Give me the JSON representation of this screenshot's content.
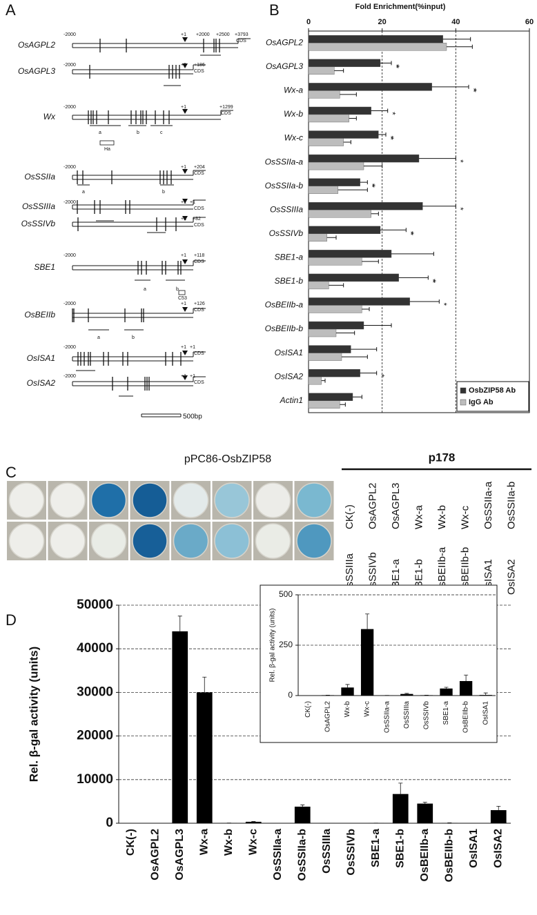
{
  "panel_labels": [
    "A",
    "B",
    "C",
    "D"
  ],
  "panel_a": {
    "genes": [
      {
        "name": "OsAGPL2",
        "labels": [
          "-2000",
          "+1",
          "+2000",
          "+2500",
          "+3793",
          "CDS"
        ]
      },
      {
        "name": "OsAGPL3",
        "labels": [
          "-2000",
          "+1",
          "+186",
          "CDS"
        ]
      },
      {
        "name": "Wx",
        "labels": [
          "-2000",
          "+1",
          "+1299",
          "CDS",
          "a",
          "b",
          "c",
          "Ha"
        ]
      },
      {
        "name": "OsSSIIa",
        "labels": [
          "-2000",
          "+1",
          "+204",
          "CDS",
          "a",
          "b"
        ]
      },
      {
        "name": "OsSSIIIa",
        "labels": [
          "-2000",
          "+1",
          "+1",
          "CDS"
        ]
      },
      {
        "name": "OsSSIVb",
        "labels": [
          "+1",
          "+82",
          "CDS"
        ]
      },
      {
        "name": "SBE1",
        "labels": [
          "-2000",
          "+1",
          "+118",
          "CDS",
          "a",
          "b",
          "C53"
        ]
      },
      {
        "name": "OsBEIIb",
        "labels": [
          "-2000",
          "+1",
          "+126",
          "CDS",
          "a",
          "b"
        ]
      },
      {
        "name": "OsISA1",
        "labels": [
          "-2000",
          "+1",
          "+1",
          "CDS"
        ]
      },
      {
        "name": "OsISA2",
        "labels": [
          "-2000",
          "+1",
          "+1",
          "CDS"
        ]
      }
    ],
    "scale_bar": "500bp"
  },
  "panel_c": {
    "title": "pPC86-OsbZIP58",
    "header": "p178",
    "rows": [
      [
        "CK(-)",
        "OsAGPL2",
        "OsAGPL3",
        "Wx-a",
        "Wx-b",
        "Wx-c",
        "OsSSIIa-a",
        "OsSSIIa-b"
      ],
      [
        "OsSSIIIa",
        "OsSSIVb",
        "SBE1-a",
        "SBE1-b",
        "OsBEIIb-a",
        "OsBEIIb-b",
        "OsISA1",
        "OsISA2"
      ]
    ]
  },
  "chart_data": [
    {
      "type": "barh",
      "title": "Fold Enrichment(%input)",
      "categories": [
        "OsAGPL2",
        "OsAGPL3",
        "Wx-a",
        "Wx-b",
        "Wx-c",
        "OsSSIIa-a",
        "OsSSIIa-b",
        "OsSSIIIa",
        "OsSSIVb",
        "SBE1-a",
        "SBE1-b",
        "OsBEIIb-a",
        "OsBEIIb-b",
        "OsISA1",
        "OsISA2",
        "Actin1"
      ],
      "series": [
        {
          "name": "OsbZIP58 Ab",
          "color": "#333333",
          "values": [
            36.5,
            19.5,
            33.5,
            17,
            19,
            30,
            14,
            31,
            19.5,
            22.5,
            24.5,
            27.5,
            15,
            11.5,
            14,
            12
          ],
          "errors": [
            7.5,
            3,
            10,
            4.5,
            2,
            10,
            2,
            9,
            7,
            11.5,
            8,
            8,
            7.5,
            7,
            4.5,
            2.5
          ]
        },
        {
          "name": "IgG Ab",
          "color": "#bdbdbd",
          "values": [
            37.5,
            7,
            8.5,
            11,
            9.5,
            15,
            8,
            17,
            5,
            14.5,
            5.5,
            14.5,
            7.5,
            9,
            3.5,
            8.5
          ],
          "errors": [
            7,
            2.5,
            4.5,
            2,
            2,
            5,
            8,
            2,
            2.5,
            4.5,
            4,
            2,
            5,
            7,
            1,
            1.5
          ]
        }
      ],
      "significance": [
        null,
        "**",
        "**",
        "*",
        "**",
        "*",
        "**",
        "*",
        "**",
        null,
        "**",
        "*",
        null,
        null,
        "*",
        null
      ],
      "xlim": [
        0,
        60
      ],
      "xticks": [
        0,
        20,
        40,
        60
      ],
      "grid": true,
      "legend": "bottom-right"
    },
    {
      "type": "bar",
      "ytitle": "Rel. β-gal activity (units)",
      "categories": [
        "CK(-)",
        "OsAGPL2",
        "OsAGPL3",
        "Wx-a",
        "Wx-b",
        "Wx-c",
        "OsSSIIa-a",
        "OsSSIIa-b",
        "OsSSIIIa",
        "OsSSIVb",
        "SBE1-a",
        "SBE1-b",
        "OsBEIIb-a",
        "OsBEIIb-b",
        "OsISA1",
        "OsISA2"
      ],
      "values": [
        0,
        2,
        44000,
        30000,
        40,
        330,
        1,
        3800,
        8,
        2,
        35,
        6700,
        4500,
        72,
        3,
        3000
      ],
      "errors": [
        0,
        0,
        3500,
        3500,
        15,
        75,
        0,
        400,
        3,
        0,
        6,
        2500,
        300,
        30,
        10,
        900
      ],
      "color": "#000000",
      "ylim": [
        0,
        50000
      ],
      "yticks": [
        0,
        10000,
        20000,
        30000,
        40000,
        50000
      ],
      "grid": true
    },
    {
      "type": "bar",
      "ytitle": "Rel. β-gal activity (units)",
      "categories": [
        "CK(-)",
        "OsAGPL2",
        "Wx-b",
        "Wx-c",
        "OsSSIIa-a",
        "OsSSIIIa",
        "OsSSIVb",
        "SBE1-a",
        "OsBEIIb-b",
        "OsISA1"
      ],
      "values": [
        0,
        2,
        40,
        330,
        1,
        8,
        2,
        35,
        72,
        3
      ],
      "errors": [
        0,
        0,
        15,
        75,
        0,
        3,
        0,
        6,
        30,
        10
      ],
      "color": "#000000",
      "ylim": [
        0,
        500
      ],
      "yticks": [
        0,
        250,
        500
      ],
      "grid": true
    }
  ]
}
